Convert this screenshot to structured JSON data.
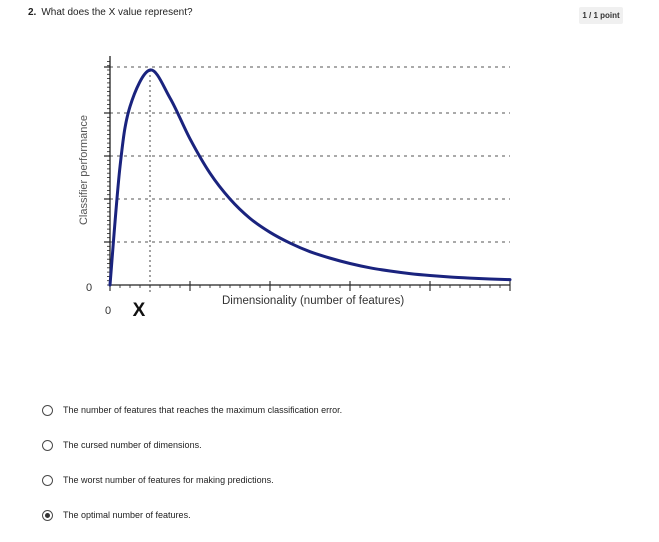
{
  "question": {
    "number": "2.",
    "text": "What does the X value represent?",
    "points": "1 / 1 point"
  },
  "chart_data": {
    "type": "line",
    "ylabel": "Classifier performance",
    "xlabel": "Dimensionality (number of features)",
    "x_origin_label": "0",
    "y_origin_label": "0",
    "x_marker_label": "X",
    "grid": "horizontal dashed",
    "series": [
      {
        "color": "#1a237e",
        "x": [
          0,
          0.5,
          1,
          2,
          3,
          4,
          5,
          6,
          7,
          8,
          9,
          10,
          11,
          12,
          13,
          14,
          15,
          16,
          17,
          18,
          19,
          20
        ],
        "y": [
          0,
          55,
          83,
          100,
          87,
          68,
          52,
          40,
          31,
          24.5,
          19.5,
          15.5,
          12.5,
          10,
          8,
          6.5,
          5.3,
          4.4,
          3.7,
          3.2,
          2.8,
          2.5
        ]
      }
    ],
    "peak_x": 2,
    "xlim": [
      0,
      20
    ],
    "ylim": [
      0,
      100
    ]
  },
  "options": [
    {
      "label": "The number of features that reaches the maximum classification error.",
      "selected": false
    },
    {
      "label": "The cursed number of dimensions.",
      "selected": false
    },
    {
      "label": "The worst number of features for making predictions.",
      "selected": false
    },
    {
      "label": "The optimal number of features.",
      "selected": true
    }
  ],
  "colors": {
    "curve": "#1a237e",
    "axis": "#222222",
    "gridline": "#555555"
  }
}
